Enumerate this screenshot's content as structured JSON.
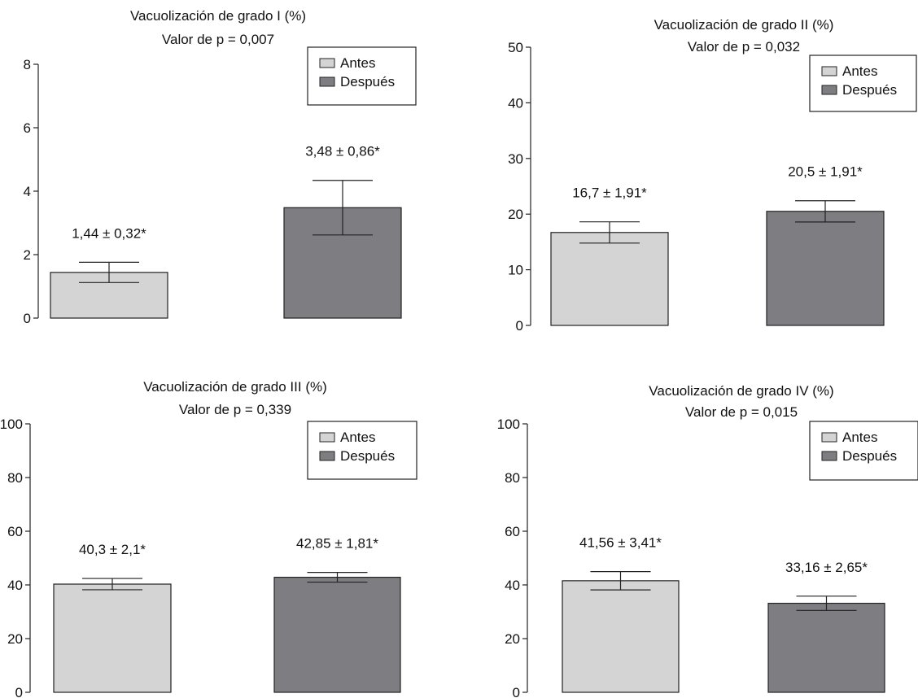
{
  "colors": {
    "before": "#d4d4d4",
    "after": "#7e7e82",
    "stroke": "#222222"
  },
  "legend": {
    "before_label": "Antes",
    "after_label": "Después"
  },
  "chart_data": [
    {
      "type": "bar",
      "title": "Vacuolización de grado I (%)",
      "subtitle": "Valor de p = 0,007",
      "categories": [
        "Antes",
        "Después"
      ],
      "values": [
        1.44,
        3.48
      ],
      "errors": [
        0.32,
        0.86
      ],
      "data_labels": [
        "1,44 ± 0,32*",
        "3,48 ± 0,86*"
      ],
      "ylim": [
        0,
        8
      ],
      "yticks": [
        0,
        2,
        4,
        6,
        8
      ],
      "legend_position": "top-right",
      "grid": false
    },
    {
      "type": "bar",
      "title": "Vacuolización de grado II (%)",
      "subtitle": "Valor de p = 0,032",
      "categories": [
        "Antes",
        "Después"
      ],
      "values": [
        16.7,
        20.5
      ],
      "errors": [
        1.91,
        1.91
      ],
      "data_labels": [
        "16,7 ± 1,91*",
        "20,5 ± 1,91*"
      ],
      "ylim": [
        0,
        50
      ],
      "yticks": [
        0,
        10,
        20,
        30,
        40,
        50
      ],
      "legend_position": "top-right",
      "grid": false
    },
    {
      "type": "bar",
      "title": "Vacuolización de grado III (%)",
      "subtitle": "Valor de p = 0,339",
      "categories": [
        "Antes",
        "Después"
      ],
      "values": [
        40.3,
        42.85
      ],
      "errors": [
        2.1,
        1.81
      ],
      "data_labels": [
        "40,3 ± 2,1*",
        "42,85 ± 1,81*"
      ],
      "ylim": [
        0,
        100
      ],
      "yticks": [
        0,
        20,
        40,
        60,
        80,
        100
      ],
      "legend_position": "top-right",
      "grid": false
    },
    {
      "type": "bar",
      "title": "Vacuolización de grado IV (%)",
      "subtitle": "Valor de p = 0,015",
      "categories": [
        "Antes",
        "Después"
      ],
      "values": [
        41.56,
        33.16
      ],
      "errors": [
        3.41,
        2.65
      ],
      "data_labels": [
        "41,56 ± 3,41*",
        "33,16 ± 2,65*"
      ],
      "ylim": [
        0,
        100
      ],
      "yticks": [
        0,
        20,
        40,
        60,
        80,
        100
      ],
      "legend_position": "top-right",
      "grid": false
    }
  ]
}
